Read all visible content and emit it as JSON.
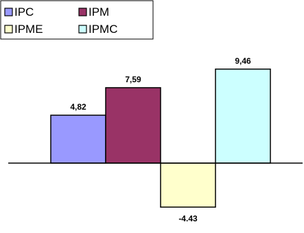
{
  "chart_data": {
    "type": "bar",
    "categories": [
      "IPC",
      "IPM",
      "IPME",
      "IPMC"
    ],
    "values": [
      4.82,
      7.59,
      -4.43,
      9.46
    ],
    "data_labels": [
      "4,82",
      "7,59",
      "-4.43",
      "9,46"
    ],
    "colors": [
      "#9999ff",
      "#993366",
      "#ffffcc",
      "#ccffff"
    ],
    "legend": {
      "position": "top-left",
      "entries": [
        "IPC",
        "IPM",
        "IPME",
        "IPMC"
      ]
    },
    "ylim": [
      -6.5,
      10.2
    ],
    "grid": false,
    "title": "",
    "xlabel": "",
    "ylabel": ""
  }
}
